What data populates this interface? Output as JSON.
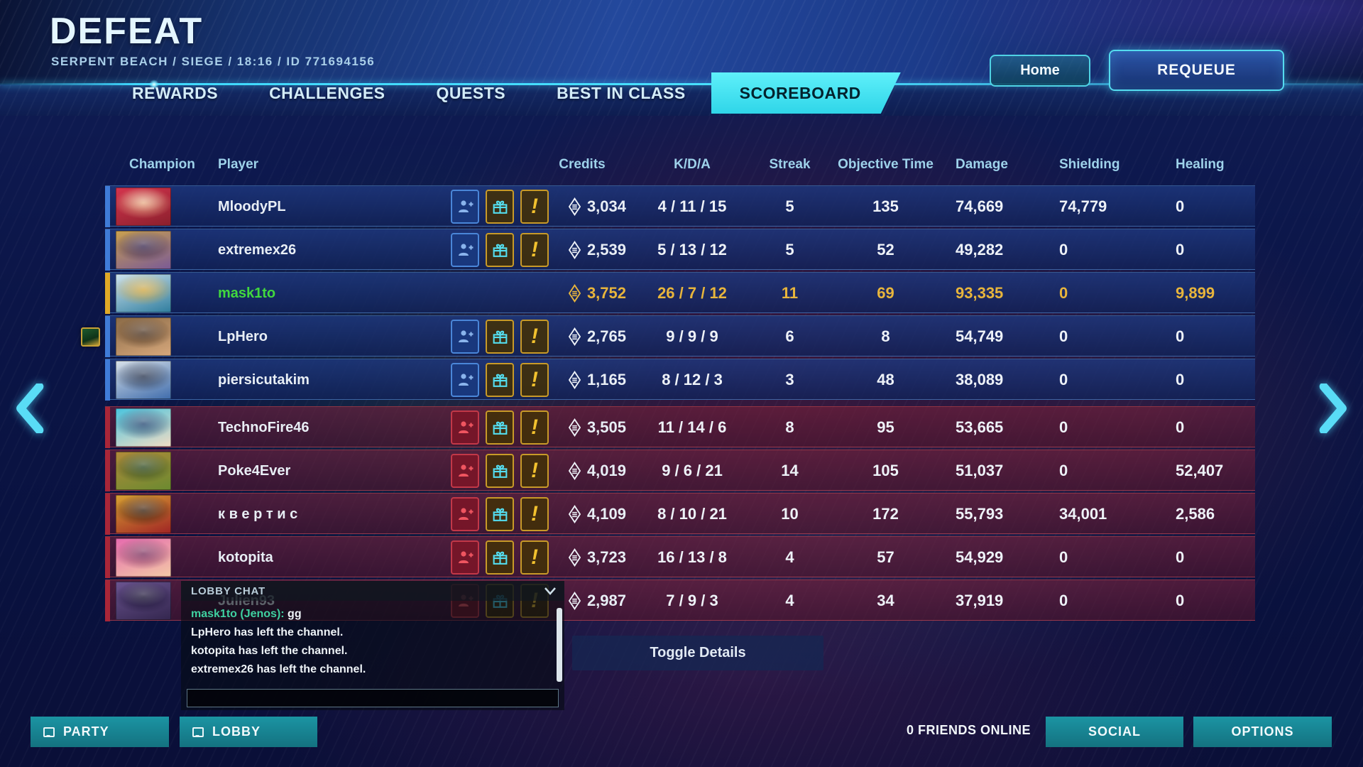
{
  "header": {
    "result": "DEFEAT",
    "match_info": "SERPENT BEACH / SIEGE / 18:16 / ID 771694156",
    "home_label": "Home",
    "requeue_label": "REQUEUE"
  },
  "tabs": [
    {
      "label": "REWARDS",
      "active": false
    },
    {
      "label": "CHALLENGES",
      "active": false
    },
    {
      "label": "QUESTS",
      "active": false
    },
    {
      "label": "BEST IN CLASS",
      "active": false
    },
    {
      "label": "SCOREBOARD",
      "active": true
    }
  ],
  "scoreboard": {
    "columns": [
      "Champion",
      "Player",
      "Credits",
      "K/D/A",
      "Streak",
      "Objective Time",
      "Damage",
      "Shielding",
      "Healing"
    ],
    "rows": [
      {
        "player": "MloodyPL",
        "team": "ally",
        "local": false,
        "has_badge": false,
        "icons": [
          "add-friend",
          "gift",
          "report"
        ],
        "credits": "3,034",
        "kda": "4 / 11 / 15",
        "streak": "5",
        "objective_time": "135",
        "damage": "74,669",
        "shielding": "74,779",
        "healing": "0",
        "portrait": [
          "#d5344e",
          "#8a1f2c",
          "#e9b08b"
        ]
      },
      {
        "player": "extremex26",
        "team": "ally",
        "local": false,
        "has_badge": false,
        "icons": [
          "add-friend",
          "gift",
          "report"
        ],
        "credits": "2,539",
        "kda": "5 / 13 / 12",
        "streak": "5",
        "objective_time": "52",
        "damage": "49,282",
        "shielding": "0",
        "healing": "0",
        "portrait": [
          "#caa14e",
          "#7a5a96",
          "#3c2b52"
        ]
      },
      {
        "player": "mask1to",
        "team": "ally",
        "local": true,
        "has_badge": false,
        "icons": [],
        "credits": "3,752",
        "kda": "26 / 7 / 12",
        "streak": "11",
        "objective_time": "69",
        "damage": "93,335",
        "shielding": "0",
        "healing": "9,899",
        "portrait": [
          "#cfe3ee",
          "#2f7d9e",
          "#d2a944"
        ]
      },
      {
        "player": "LpHero",
        "team": "ally",
        "local": false,
        "has_badge": true,
        "icons": [
          "add-friend",
          "gift",
          "report"
        ],
        "credits": "2,765",
        "kda": "9 / 9 / 9",
        "streak": "6",
        "objective_time": "8",
        "damage": "54,749",
        "shielding": "0",
        "healing": "0",
        "portrait": [
          "#8a6a46",
          "#d7a87c",
          "#4a3322"
        ]
      },
      {
        "player": "piersicutakim",
        "team": "ally",
        "local": false,
        "has_badge": false,
        "icons": [
          "add-friend",
          "gift",
          "report"
        ],
        "credits": "1,165",
        "kda": "8 / 12 / 3",
        "streak": "3",
        "objective_time": "48",
        "damage": "38,089",
        "shielding": "0",
        "healing": "0",
        "portrait": [
          "#d9e2ea",
          "#3f6cac",
          "#28354f"
        ]
      },
      {
        "player": "TechnoFire46",
        "team": "enemy",
        "local": false,
        "has_badge": false,
        "icons": [
          "add-friend",
          "gift",
          "report"
        ],
        "credits": "3,505",
        "kda": "11 / 14 / 6",
        "streak": "8",
        "objective_time": "95",
        "damage": "53,665",
        "shielding": "0",
        "healing": "0",
        "portrait": [
          "#49c4de",
          "#f2dcc4",
          "#274a74"
        ]
      },
      {
        "player": "Poke4Ever",
        "team": "enemy",
        "local": false,
        "has_badge": false,
        "icons": [
          "add-friend",
          "gift",
          "report"
        ],
        "credits": "4,019",
        "kda": "9 / 6 / 21",
        "streak": "14",
        "objective_time": "105",
        "damage": "51,037",
        "shielding": "0",
        "healing": "52,407",
        "portrait": [
          "#b28a3a",
          "#6b8a30",
          "#2e4a22"
        ]
      },
      {
        "player": "к в е р т и с",
        "team": "enemy",
        "local": false,
        "has_badge": false,
        "icons": [
          "add-friend",
          "gift",
          "report"
        ],
        "credits": "4,109",
        "kda": "8 / 10 / 21",
        "streak": "10",
        "objective_time": "172",
        "damage": "55,793",
        "shielding": "34,001",
        "healing": "2,586",
        "portrait": [
          "#d8a233",
          "#a02424",
          "#3a2210"
        ]
      },
      {
        "player": "kotopita",
        "team": "enemy",
        "local": false,
        "has_badge": false,
        "icons": [
          "add-friend",
          "gift",
          "report"
        ],
        "credits": "3,723",
        "kda": "16 / 13 / 8",
        "streak": "4",
        "objective_time": "57",
        "damage": "54,929",
        "shielding": "0",
        "healing": "0",
        "portrait": [
          "#e66aae",
          "#f3c9a6",
          "#7c3460"
        ]
      },
      {
        "player": "Julien93",
        "team": "enemy",
        "local": false,
        "has_badge": false,
        "icons": [
          "add-friend",
          "gift",
          "report"
        ],
        "credits": "2,987",
        "kda": "7 / 9 / 3",
        "streak": "4",
        "objective_time": "34",
        "damage": "37,919",
        "shielding": "0",
        "healing": "0",
        "portrait": [
          "#6b5490",
          "#33264e",
          "#191233"
        ]
      }
    ]
  },
  "chat": {
    "title": "LOBBY CHAT",
    "messages": [
      {
        "sender": "mask1to (Jenos):",
        "text": "gg"
      },
      {
        "sender": "",
        "text": "LpHero has left the channel."
      },
      {
        "sender": "",
        "text": "kotopita has left the channel."
      },
      {
        "sender": "",
        "text": "extremex26 has left the channel."
      }
    ],
    "input_value": ""
  },
  "toggle_details_label": "Toggle Details",
  "footer": {
    "party": "PARTY",
    "lobby": "LOBBY",
    "friends_online": "0 FRIENDS ONLINE",
    "social": "SOCIAL",
    "options": "OPTIONS"
  },
  "colors": {
    "accent_cyan": "#49e0ff",
    "active_tab": "#3fd9e8",
    "local_player_gold": "#e8b53c",
    "local_player_name_green": "#41d83e",
    "chat_sender_teal": "#3fd1a0",
    "ally_row_blue": "#1e387e",
    "enemy_row_red": "#76203a",
    "footer_teal": "#17818f"
  }
}
